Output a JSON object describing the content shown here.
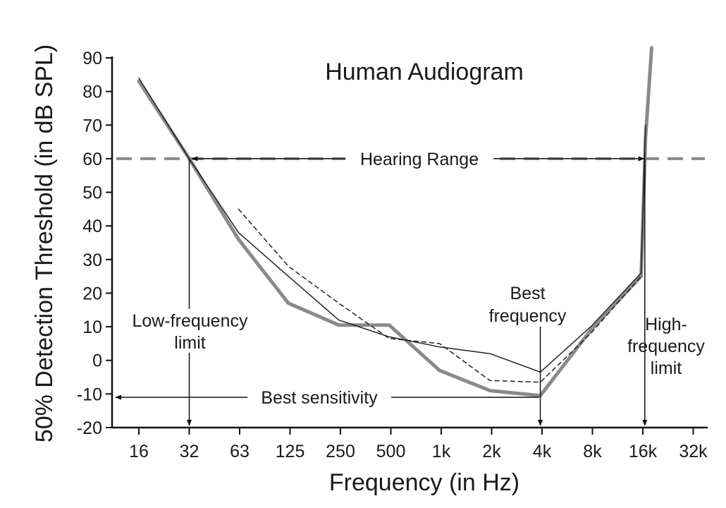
{
  "chart_data": {
    "type": "line",
    "title": "Human Audiogram",
    "xlabel": "Frequency (in Hz)",
    "ylabel": "50% Detection Threshold (in dB SPL)",
    "x_scale": "log2",
    "categories": [
      "16",
      "32",
      "63",
      "125",
      "250",
      "500",
      "1k",
      "2k",
      "4k",
      "8k",
      "16k",
      "32k"
    ],
    "y_ticks": [
      -20,
      -10,
      0,
      10,
      20,
      30,
      40,
      50,
      60,
      70,
      80,
      90
    ],
    "ylim": [
      -20,
      90
    ],
    "grid": false,
    "series": [
      {
        "style": "thick-gray",
        "color": "#8a8a8a",
        "points": [
          [
            16,
            83
          ],
          [
            32,
            60
          ],
          [
            63,
            36
          ],
          [
            125,
            17
          ],
          [
            250,
            10.5
          ],
          [
            500,
            10.5
          ],
          [
            1000,
            -3
          ],
          [
            2000,
            -9
          ],
          [
            4000,
            -10.5
          ],
          [
            8000,
            9
          ],
          [
            16000,
            25
          ],
          [
            17000,
            66
          ],
          [
            18500,
            93
          ]
        ]
      },
      {
        "style": "thin-solid",
        "color": "#222222",
        "points": [
          [
            16,
            84
          ],
          [
            32,
            60
          ],
          [
            63,
            38
          ],
          [
            125,
            25
          ],
          [
            250,
            12
          ],
          [
            500,
            7
          ],
          [
            1000,
            4
          ],
          [
            2000,
            2
          ],
          [
            4000,
            -3.5
          ],
          [
            8000,
            10
          ],
          [
            16000,
            26
          ],
          [
            17000,
            70
          ]
        ]
      },
      {
        "style": "thin-dashed",
        "color": "#222222",
        "points": [
          [
            63,
            45
          ],
          [
            125,
            28
          ],
          [
            250,
            17
          ],
          [
            500,
            6.5
          ],
          [
            1000,
            5
          ],
          [
            2000,
            -6
          ],
          [
            4000,
            -6.5
          ],
          [
            8000,
            8
          ],
          [
            16000,
            25
          ]
        ]
      }
    ],
    "reference_line": {
      "y": 60,
      "style": "dashed",
      "color": "#8a8a8a"
    },
    "annotations": {
      "hearing_range": {
        "label": "Hearing Range",
        "y": 60,
        "x_from": 32,
        "x_to": 16000
      },
      "best_sensitivity": {
        "label": "Best sensitivity",
        "y": -11,
        "x_from": 4000,
        "x_to": 10
      },
      "low_freq_limit": {
        "lines": [
          "Low-frequency",
          "limit"
        ],
        "x": 32
      },
      "best_frequency": {
        "lines": [
          "Best",
          "frequency"
        ],
        "x": 4000
      },
      "high_freq_limit": {
        "lines": [
          "High-",
          "frequency",
          "limit"
        ],
        "x": 17000
      }
    }
  }
}
